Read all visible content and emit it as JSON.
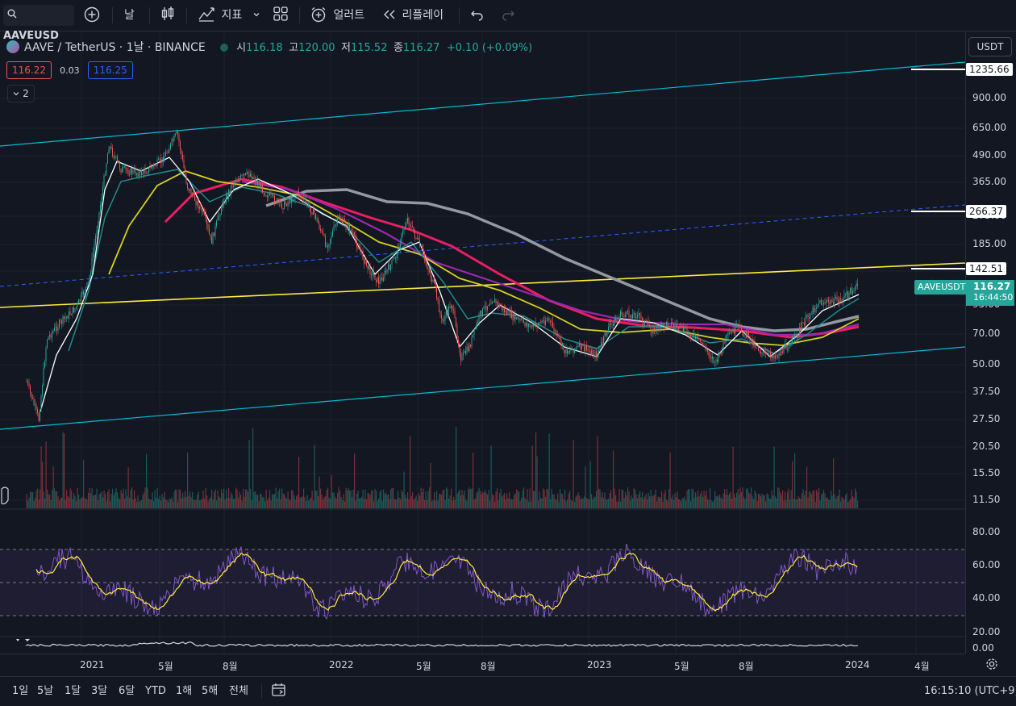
{
  "toolbar": {
    "symbol": "AAVEUSD",
    "interval": "날",
    "indicators": "지표",
    "alert": "얼러트",
    "replay": "리플레이"
  },
  "legend": {
    "title": "AAVE / TetherUS · 1날 · BINANCE",
    "open_label": "시",
    "open": "116.18",
    "high_label": "고",
    "high": "120.00",
    "low_label": "저",
    "low": "115.52",
    "close_label": "종",
    "close": "116.27",
    "change": "+0.10 (+0.09%)",
    "bid": "116.22",
    "spread": "0.03",
    "ask": "116.25",
    "collapsed_count": "2"
  },
  "price_axis": {
    "currency": "USDT",
    "ticks": [
      "900.00",
      "650.00",
      "490.00",
      "365.00",
      "275.00",
      "185.00",
      "135.00",
      "95.00",
      "70.00",
      "50.00",
      "37.50",
      "27.50",
      "20.50",
      "15.50",
      "11.50"
    ],
    "labels": [
      {
        "text": "1235.66"
      },
      {
        "text": "266.37"
      },
      {
        "text": "142.51"
      }
    ],
    "symbol_tag": "AAVEUSDT",
    "last_price": "116.27",
    "countdown": "16:44:50",
    "rsi_ticks": [
      "80.00",
      "60.00",
      "40.00",
      "20.00"
    ],
    "osc_tick": "0.00"
  },
  "time_axis": {
    "ticks": [
      {
        "label": "2021"
      },
      {
        "label": "5월"
      },
      {
        "label": "8월"
      },
      {
        "label": "2022"
      },
      {
        "label": "5월"
      },
      {
        "label": "8월"
      },
      {
        "label": "2023"
      },
      {
        "label": "5월"
      },
      {
        "label": "8월"
      },
      {
        "label": "2024"
      },
      {
        "label": "4월"
      }
    ]
  },
  "bottom_bar": {
    "ranges": [
      "1일",
      "5날",
      "1달",
      "3달",
      "6달",
      "YTD",
      "1해",
      "5해",
      "전체"
    ],
    "clock": "16:15:10 (UTC+9)"
  },
  "colors": {
    "up": "#26a69a",
    "down": "#ef5350",
    "ma_fast": "#ffffff",
    "ma_teal": "#1f8a8a",
    "ma_yellow": "#d6d01e",
    "ma_purple": "#9c27b0",
    "ma_pink": "#e91e63",
    "ma_grey": "#9598a1",
    "trend_cyan": "#00bcd4",
    "trend_yellow": "#ffeb3b",
    "rsi": "#7e57c2",
    "rsi_ma": "#ffeb3b"
  }
}
